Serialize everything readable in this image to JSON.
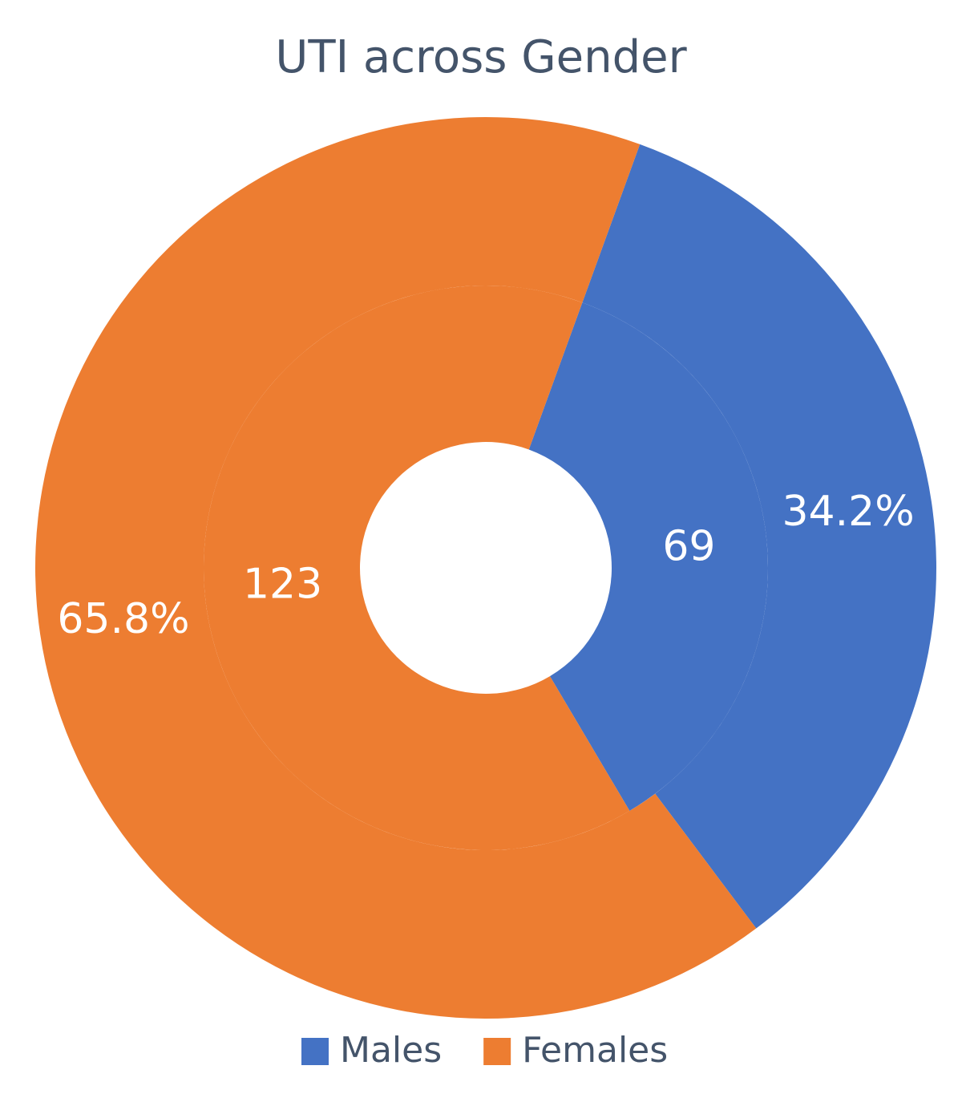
{
  "chart_data": {
    "type": "pie",
    "title": "UTI across Gender",
    "categories": [
      "Males",
      "Females"
    ],
    "colors": [
      "#4472c4",
      "#ed7d31"
    ],
    "series": [
      {
        "values": [
          34.2,
          65.8
        ],
        "value_labels": [
          "34.2%",
          "65.8%"
        ]
      },
      {
        "values": [
          69,
          123
        ]
      }
    ],
    "legend": "bottom"
  }
}
